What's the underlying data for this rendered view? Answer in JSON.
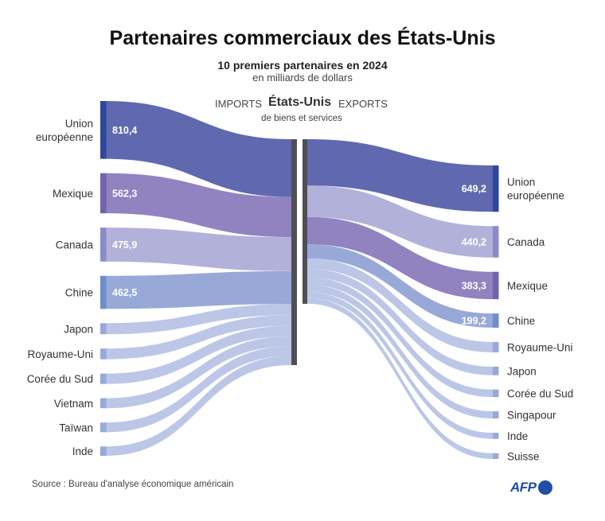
{
  "header": {
    "title": "Partenaires commerciaux des États-Unis",
    "subtitle": "10 premiers partenaires en 2024",
    "unit": "en milliards de dollars"
  },
  "center": {
    "imports_label": "IMPORTS",
    "name": "États-Unis",
    "exports_label": "EXPORTS",
    "sub": "de biens et services"
  },
  "footer": {
    "source": "Source : Bureau d'analyse économique américain",
    "logo": "AFP"
  },
  "chart_data": {
    "type": "sankey",
    "title": "Partenaires commerciaux des États-Unis",
    "subtitle": "10 premiers partenaires en 2024",
    "unit": "en milliards de dollars",
    "center_node": "États-Unis",
    "imports": [
      {
        "name": "Union européenne",
        "lines": [
          "Union",
          "européenne"
        ],
        "value": 810.4,
        "label": "810,4",
        "color": "#6068b0",
        "node_color": "#2f479c"
      },
      {
        "name": "Mexique",
        "lines": [
          "Mexique"
        ],
        "value": 562.3,
        "label": "562,3",
        "color": "#9182c0",
        "node_color": "#7262ad"
      },
      {
        "name": "Canada",
        "lines": [
          "Canada"
        ],
        "value": 475.9,
        "label": "475,9",
        "color": "#b2b1da",
        "node_color": "#8a8bc7"
      },
      {
        "name": "Chine",
        "lines": [
          "Chine"
        ],
        "value": 462.5,
        "label": "462,5",
        "color": "#98a9d8",
        "node_color": "#6e8dcb"
      },
      {
        "name": "Japon",
        "lines": [
          "Japon"
        ],
        "value": 155,
        "label": "",
        "color": "#bcc6e7",
        "node_color": "#97a8d9"
      },
      {
        "name": "Royaume-Uni",
        "lines": [
          "Royaume-Uni"
        ],
        "value": 150,
        "label": "",
        "color": "#bcc6e7",
        "node_color": "#97a8d9"
      },
      {
        "name": "Corée du Sud",
        "lines": [
          "Corée du Sud"
        ],
        "value": 145,
        "label": "",
        "color": "#bcc6e7",
        "node_color": "#97a8d9"
      },
      {
        "name": "Vietnam",
        "lines": [
          "Vietnam"
        ],
        "value": 140,
        "label": "",
        "color": "#bcc6e7",
        "node_color": "#97a8d9"
      },
      {
        "name": "Taïwan",
        "lines": [
          "Taïwan"
        ],
        "value": 135,
        "label": "",
        "color": "#bcc6e7",
        "node_color": "#97a8d9"
      },
      {
        "name": "Inde",
        "lines": [
          "Inde"
        ],
        "value": 130,
        "label": "",
        "color": "#bcc6e7",
        "node_color": "#97a8d9"
      }
    ],
    "exports": [
      {
        "name": "Union européenne",
        "lines": [
          "Union",
          "européenne"
        ],
        "value": 649.2,
        "label": "649,2",
        "color": "#6068b0",
        "node_color": "#2f479c"
      },
      {
        "name": "Canada",
        "lines": [
          "Canada"
        ],
        "value": 440.2,
        "label": "440,2",
        "color": "#b2b1da",
        "node_color": "#8a8bc7"
      },
      {
        "name": "Mexique",
        "lines": [
          "Mexique"
        ],
        "value": 383.3,
        "label": "383,3",
        "color": "#9182c0",
        "node_color": "#7262ad"
      },
      {
        "name": "Chine",
        "lines": [
          "Chine"
        ],
        "value": 199.2,
        "label": "199,2",
        "color": "#98a9d8",
        "node_color": "#6e8dcb"
      },
      {
        "name": "Royaume-Uni",
        "lines": [
          "Royaume-Uni"
        ],
        "value": 145,
        "label": "",
        "color": "#bcc6e7",
        "node_color": "#97a8d9"
      },
      {
        "name": "Japon",
        "lines": [
          "Japon"
        ],
        "value": 120,
        "label": "",
        "color": "#bcc6e7",
        "node_color": "#97a8d9"
      },
      {
        "name": "Corée du Sud",
        "lines": [
          "Corée du Sud"
        ],
        "value": 105,
        "label": "",
        "color": "#bcc6e7",
        "node_color": "#97a8d9"
      },
      {
        "name": "Singapour",
        "lines": [
          "Singapour"
        ],
        "value": 100,
        "label": "",
        "color": "#bcc6e7",
        "node_color": "#97a8d9"
      },
      {
        "name": "Inde",
        "lines": [
          "Inde"
        ],
        "value": 85,
        "label": "",
        "color": "#bcc6e7",
        "node_color": "#97a8d9"
      },
      {
        "name": "Suisse",
        "lines": [
          "Suisse"
        ],
        "value": 80,
        "label": "",
        "color": "#bcc6e7",
        "node_color": "#97a8d9"
      }
    ],
    "center_bar_color": "#4f4f55"
  }
}
